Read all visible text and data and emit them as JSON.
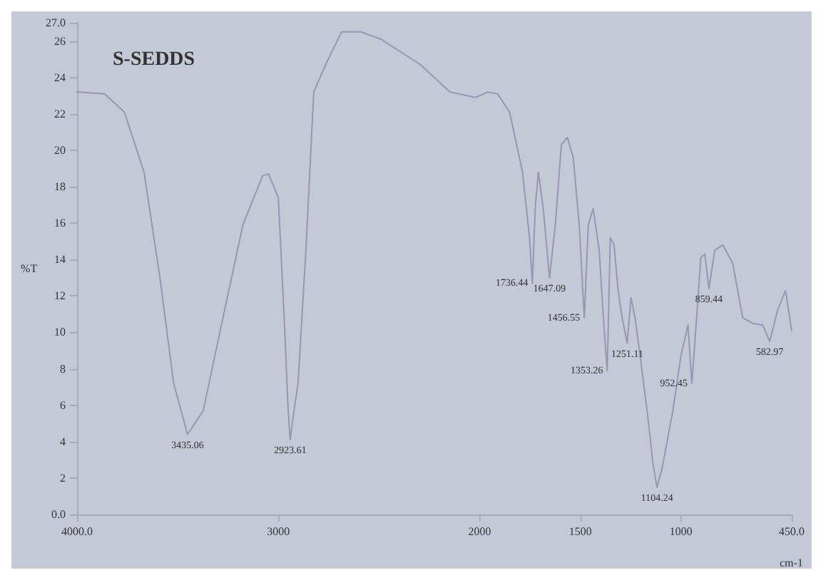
{
  "chart_data": {
    "type": "line",
    "title": "S-SEDDS",
    "xlabel": "cm-1",
    "ylabel": "%T",
    "xlim": [
      4000,
      450
    ],
    "xticks": [
      {
        "value": 4000,
        "label": "4000.0"
      },
      3000,
      2000,
      1500,
      1000,
      {
        "value": 450,
        "label": "450.0"
      }
    ],
    "ylim": [
      0,
      27
    ],
    "yticks": [
      {
        "value": 0,
        "label": "0.0"
      },
      2,
      4,
      6,
      8,
      10,
      12,
      14,
      16,
      18,
      20,
      22,
      24,
      26,
      {
        "value": 27,
        "label": "27.0"
      }
    ],
    "grid": false,
    "marker": "none",
    "line_style": "solid",
    "series": [
      {
        "color": "#9896b0",
        "x": [
          4000,
          3863,
          3765,
          3667,
          3588,
          3520,
          3451,
          3373,
          3275,
          3176,
          3078,
          3049,
          3000,
          2971,
          2951,
          2941,
          2922,
          2902,
          2863,
          2824,
          2765,
          2686,
          2588,
          2490,
          2294,
          2147,
          2020,
          1960,
          1911,
          1851,
          1787,
          1752,
          1738,
          1723,
          1708,
          1683,
          1653,
          1624,
          1594,
          1564,
          1535,
          1505,
          1480,
          1460,
          1436,
          1406,
          1381,
          1366,
          1351,
          1332,
          1312,
          1292,
          1267,
          1248,
          1228,
          1198,
          1168,
          1139,
          1119,
          1094,
          1040,
          1000,
          965,
          946,
          931,
          901,
          881,
          861,
          832,
          792,
          743,
          693,
          644,
          594,
          559,
          520,
          480,
          450
        ],
        "values": [
          23.2,
          23.1,
          22.1,
          18.8,
          13.0,
          7.2,
          4.4,
          5.7,
          10.8,
          15.9,
          18.6,
          18.7,
          17.4,
          10.8,
          5.7,
          4.1,
          5.7,
          7.2,
          14.5,
          23.2,
          24.7,
          26.5,
          26.5,
          26.1,
          24.7,
          23.2,
          22.9,
          23.2,
          23.1,
          22.1,
          18.8,
          15.2,
          12.7,
          17.0,
          18.8,
          16.7,
          13.0,
          15.9,
          20.3,
          20.7,
          19.6,
          15.9,
          10.8,
          15.9,
          16.8,
          14.5,
          10.1,
          7.9,
          15.2,
          14.8,
          12.3,
          10.8,
          9.4,
          11.9,
          10.8,
          8.3,
          5.7,
          2.8,
          1.5,
          2.5,
          5.7,
          8.7,
          10.4,
          7.2,
          9.4,
          14.1,
          14.3,
          12.4,
          14.5,
          14.8,
          13.8,
          10.8,
          10.5,
          10.4,
          9.5,
          11.2,
          12.3,
          10.1
        ]
      }
    ],
    "annotations": [
      {
        "text": "3435.06",
        "x": 3451,
        "y": 4.4
      },
      {
        "text": "2923.61",
        "x": 2941,
        "y": 4.1
      },
      {
        "text": "1736.44",
        "x": 1738,
        "y": 12.7
      },
      {
        "text": "1647.09",
        "x": 1653,
        "y": 13.0
      },
      {
        "text": "1456.55",
        "x": 1480,
        "y": 10.8
      },
      {
        "text": "1353.26",
        "x": 1366,
        "y": 7.9
      },
      {
        "text": "1251.11",
        "x": 1267,
        "y": 9.4
      },
      {
        "text": "1104.24",
        "x": 1119,
        "y": 1.5
      },
      {
        "text": "952.45",
        "x": 946,
        "y": 7.2
      },
      {
        "text": "859.44",
        "x": 861,
        "y": 12.4
      },
      {
        "text": "582.97",
        "x": 559,
        "y": 9.5
      }
    ]
  }
}
